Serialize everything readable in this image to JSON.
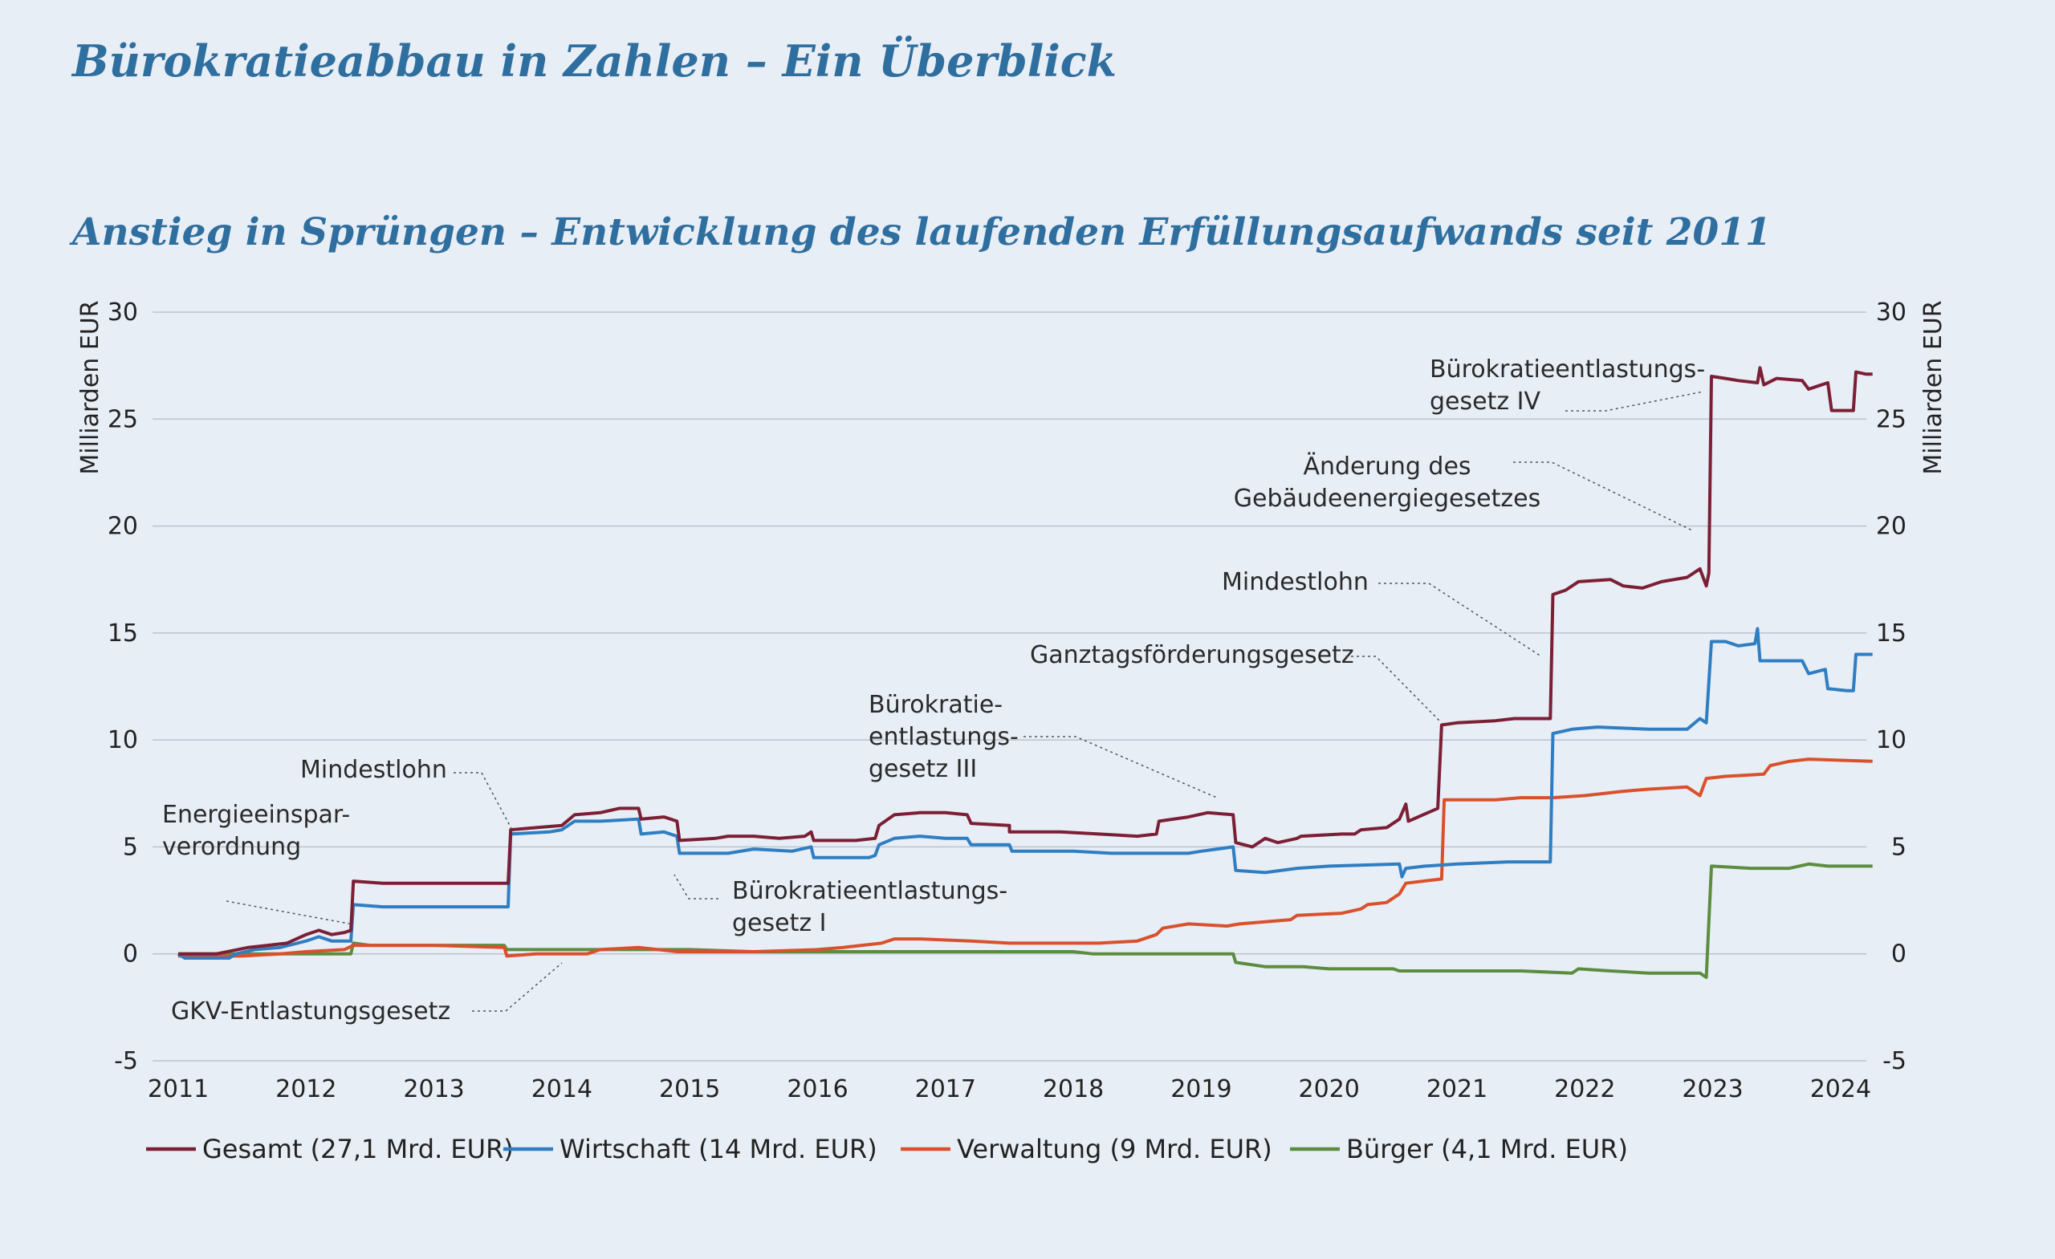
{
  "page": {
    "title": "Bürokratieabbau in Zahlen – Ein Überblick"
  },
  "chart_data": {
    "type": "line",
    "title": "Anstieg in Sprüngen – Entwicklung des laufenden Erfüllungsaufwands seit 2011",
    "ylabel": "Milliarden EUR",
    "ylabel_right": "Milliarden EUR",
    "ylim": [
      -5,
      30
    ],
    "yticks": [
      30,
      25,
      20,
      15,
      10,
      5,
      0,
      -5
    ],
    "xlim": [
      2011,
      2024.3
    ],
    "xticks": [
      "2011",
      "2012",
      "2013",
      "2014",
      "2015",
      "2016",
      "2017",
      "2018",
      "2019",
      "2020",
      "2021",
      "2022",
      "2023",
      "2024"
    ],
    "grid": true,
    "legend_position": "bottom",
    "series": [
      {
        "name": "Gesamt (27,1 Mrd. EUR)",
        "color": "#7b1f35",
        "points": [
          [
            2011.0,
            0.0
          ],
          [
            2011.3,
            0.0
          ],
          [
            2011.55,
            0.3
          ],
          [
            2011.7,
            0.4
          ],
          [
            2011.85,
            0.5
          ],
          [
            2012.0,
            0.9
          ],
          [
            2012.1,
            1.1
          ],
          [
            2012.2,
            0.9
          ],
          [
            2012.3,
            1.0
          ],
          [
            2012.35,
            1.1
          ],
          [
            2012.37,
            3.4
          ],
          [
            2012.6,
            3.3
          ],
          [
            2013.0,
            3.3
          ],
          [
            2013.58,
            3.3
          ],
          [
            2013.6,
            5.8
          ],
          [
            2013.8,
            5.9
          ],
          [
            2014.0,
            6.0
          ],
          [
            2014.1,
            6.5
          ],
          [
            2014.3,
            6.6
          ],
          [
            2014.45,
            6.8
          ],
          [
            2014.6,
            6.8
          ],
          [
            2014.62,
            6.3
          ],
          [
            2014.8,
            6.4
          ],
          [
            2014.9,
            6.2
          ],
          [
            2014.92,
            5.3
          ],
          [
            2015.2,
            5.4
          ],
          [
            2015.3,
            5.5
          ],
          [
            2015.5,
            5.5
          ],
          [
            2015.7,
            5.4
          ],
          [
            2015.9,
            5.5
          ],
          [
            2015.95,
            5.7
          ],
          [
            2015.97,
            5.3
          ],
          [
            2016.3,
            5.3
          ],
          [
            2016.45,
            5.4
          ],
          [
            2016.48,
            6.0
          ],
          [
            2016.6,
            6.5
          ],
          [
            2016.8,
            6.6
          ],
          [
            2017.0,
            6.6
          ],
          [
            2017.17,
            6.5
          ],
          [
            2017.2,
            6.1
          ],
          [
            2017.5,
            6.0
          ],
          [
            2017.5,
            5.7
          ],
          [
            2017.9,
            5.7
          ],
          [
            2018.2,
            5.6
          ],
          [
            2018.5,
            5.5
          ],
          [
            2018.65,
            5.6
          ],
          [
            2018.67,
            6.2
          ],
          [
            2018.9,
            6.4
          ],
          [
            2019.05,
            6.6
          ],
          [
            2019.25,
            6.5
          ],
          [
            2019.27,
            5.2
          ],
          [
            2019.4,
            5.0
          ],
          [
            2019.5,
            5.4
          ],
          [
            2019.6,
            5.2
          ],
          [
            2019.75,
            5.4
          ],
          [
            2019.78,
            5.5
          ],
          [
            2020.1,
            5.6
          ],
          [
            2020.2,
            5.6
          ],
          [
            2020.25,
            5.8
          ],
          [
            2020.45,
            5.9
          ],
          [
            2020.55,
            6.3
          ],
          [
            2020.6,
            7.0
          ],
          [
            2020.62,
            6.2
          ],
          [
            2020.85,
            6.8
          ],
          [
            2020.88,
            10.7
          ],
          [
            2021.0,
            10.8
          ],
          [
            2021.3,
            10.9
          ],
          [
            2021.45,
            11.0
          ],
          [
            2021.73,
            11.0
          ],
          [
            2021.75,
            16.8
          ],
          [
            2021.85,
            17.0
          ],
          [
            2021.95,
            17.4
          ],
          [
            2022.2,
            17.5
          ],
          [
            2022.3,
            17.2
          ],
          [
            2022.45,
            17.1
          ],
          [
            2022.6,
            17.4
          ],
          [
            2022.8,
            17.6
          ],
          [
            2022.9,
            18.0
          ],
          [
            2022.95,
            17.2
          ],
          [
            2022.97,
            17.8
          ],
          [
            2022.99,
            27.0
          ],
          [
            2023.1,
            26.9
          ],
          [
            2023.2,
            26.8
          ],
          [
            2023.35,
            26.7
          ],
          [
            2023.37,
            27.4
          ],
          [
            2023.4,
            26.6
          ],
          [
            2023.5,
            26.9
          ],
          [
            2023.7,
            26.8
          ],
          [
            2023.75,
            26.4
          ],
          [
            2023.8,
            26.5
          ],
          [
            2023.9,
            26.7
          ],
          [
            2023.93,
            25.4
          ],
          [
            2024.05,
            25.4
          ],
          [
            2024.1,
            25.4
          ],
          [
            2024.12,
            27.2
          ],
          [
            2024.2,
            27.1
          ],
          [
            2024.25,
            27.1
          ]
        ]
      },
      {
        "name": "Wirtschaft (14 Mrd. EUR)",
        "color": "#2f7ec1",
        "points": [
          [
            2011.0,
            0.0
          ],
          [
            2011.05,
            -0.2
          ],
          [
            2011.4,
            -0.2
          ],
          [
            2011.45,
            0.0
          ],
          [
            2011.6,
            0.2
          ],
          [
            2011.8,
            0.3
          ],
          [
            2012.0,
            0.6
          ],
          [
            2012.1,
            0.8
          ],
          [
            2012.2,
            0.6
          ],
          [
            2012.35,
            0.6
          ],
          [
            2012.37,
            2.3
          ],
          [
            2012.6,
            2.2
          ],
          [
            2013.0,
            2.2
          ],
          [
            2013.58,
            2.2
          ],
          [
            2013.6,
            5.6
          ],
          [
            2013.9,
            5.7
          ],
          [
            2014.0,
            5.8
          ],
          [
            2014.1,
            6.2
          ],
          [
            2014.3,
            6.2
          ],
          [
            2014.6,
            6.3
          ],
          [
            2014.62,
            5.6
          ],
          [
            2014.8,
            5.7
          ],
          [
            2014.9,
            5.5
          ],
          [
            2014.92,
            4.7
          ],
          [
            2015.3,
            4.7
          ],
          [
            2015.5,
            4.9
          ],
          [
            2015.8,
            4.8
          ],
          [
            2015.95,
            5.0
          ],
          [
            2015.97,
            4.5
          ],
          [
            2016.4,
            4.5
          ],
          [
            2016.45,
            4.6
          ],
          [
            2016.48,
            5.1
          ],
          [
            2016.6,
            5.4
          ],
          [
            2016.8,
            5.5
          ],
          [
            2017.0,
            5.4
          ],
          [
            2017.17,
            5.4
          ],
          [
            2017.2,
            5.1
          ],
          [
            2017.5,
            5.1
          ],
          [
            2017.52,
            4.8
          ],
          [
            2018.0,
            4.8
          ],
          [
            2018.3,
            4.7
          ],
          [
            2018.7,
            4.7
          ],
          [
            2018.9,
            4.7
          ],
          [
            2019.0,
            4.8
          ],
          [
            2019.25,
            5.0
          ],
          [
            2019.27,
            3.9
          ],
          [
            2019.5,
            3.8
          ],
          [
            2019.75,
            4.0
          ],
          [
            2020.0,
            4.1
          ],
          [
            2020.55,
            4.2
          ],
          [
            2020.57,
            3.6
          ],
          [
            2020.6,
            4.0
          ],
          [
            2020.75,
            4.1
          ],
          [
            2021.0,
            4.2
          ],
          [
            2021.4,
            4.3
          ],
          [
            2021.73,
            4.3
          ],
          [
            2021.75,
            10.3
          ],
          [
            2021.9,
            10.5
          ],
          [
            2022.1,
            10.6
          ],
          [
            2022.5,
            10.5
          ],
          [
            2022.8,
            10.5
          ],
          [
            2022.9,
            11.0
          ],
          [
            2022.95,
            10.8
          ],
          [
            2022.99,
            14.6
          ],
          [
            2023.1,
            14.6
          ],
          [
            2023.2,
            14.4
          ],
          [
            2023.33,
            14.5
          ],
          [
            2023.35,
            15.2
          ],
          [
            2023.37,
            13.7
          ],
          [
            2023.7,
            13.7
          ],
          [
            2023.75,
            13.1
          ],
          [
            2023.88,
            13.3
          ],
          [
            2023.9,
            12.4
          ],
          [
            2024.05,
            12.3
          ],
          [
            2024.1,
            12.3
          ],
          [
            2024.12,
            14.0
          ],
          [
            2024.25,
            14.0
          ]
        ]
      },
      {
        "name": "Verwaltung (9 Mrd. EUR)",
        "color": "#d9512c",
        "points": [
          [
            2011.0,
            -0.1
          ],
          [
            2011.5,
            -0.1
          ],
          [
            2011.8,
            0.0
          ],
          [
            2012.0,
            0.1
          ],
          [
            2012.3,
            0.2
          ],
          [
            2012.37,
            0.4
          ],
          [
            2012.8,
            0.4
          ],
          [
            2013.0,
            0.4
          ],
          [
            2013.55,
            0.3
          ],
          [
            2013.57,
            -0.1
          ],
          [
            2013.8,
            0.0
          ],
          [
            2014.0,
            0.0
          ],
          [
            2014.2,
            0.0
          ],
          [
            2014.3,
            0.2
          ],
          [
            2014.6,
            0.3
          ],
          [
            2014.9,
            0.1
          ],
          [
            2015.5,
            0.1
          ],
          [
            2016.0,
            0.2
          ],
          [
            2016.2,
            0.3
          ],
          [
            2016.5,
            0.5
          ],
          [
            2016.6,
            0.7
          ],
          [
            2016.8,
            0.7
          ],
          [
            2017.2,
            0.6
          ],
          [
            2017.5,
            0.5
          ],
          [
            2018.0,
            0.5
          ],
          [
            2018.2,
            0.5
          ],
          [
            2018.5,
            0.6
          ],
          [
            2018.65,
            0.9
          ],
          [
            2018.7,
            1.2
          ],
          [
            2018.9,
            1.4
          ],
          [
            2019.2,
            1.3
          ],
          [
            2019.3,
            1.4
          ],
          [
            2019.5,
            1.5
          ],
          [
            2019.7,
            1.6
          ],
          [
            2019.75,
            1.8
          ],
          [
            2020.1,
            1.9
          ],
          [
            2020.25,
            2.1
          ],
          [
            2020.3,
            2.3
          ],
          [
            2020.45,
            2.4
          ],
          [
            2020.55,
            2.8
          ],
          [
            2020.6,
            3.3
          ],
          [
            2020.88,
            3.5
          ],
          [
            2020.9,
            7.2
          ],
          [
            2021.3,
            7.2
          ],
          [
            2021.5,
            7.3
          ],
          [
            2021.75,
            7.3
          ],
          [
            2022.0,
            7.4
          ],
          [
            2022.3,
            7.6
          ],
          [
            2022.5,
            7.7
          ],
          [
            2022.8,
            7.8
          ],
          [
            2022.9,
            7.4
          ],
          [
            2022.95,
            8.2
          ],
          [
            2023.1,
            8.3
          ],
          [
            2023.4,
            8.4
          ],
          [
            2023.45,
            8.8
          ],
          [
            2023.6,
            9.0
          ],
          [
            2023.75,
            9.1
          ],
          [
            2024.25,
            9.0
          ]
        ]
      },
      {
        "name": "Bürger (4,1 Mrd. EUR)",
        "color": "#5c8d3f",
        "points": [
          [
            2011.0,
            0.0
          ],
          [
            2012.0,
            0.0
          ],
          [
            2012.35,
            0.0
          ],
          [
            2012.37,
            0.5
          ],
          [
            2012.5,
            0.4
          ],
          [
            2013.0,
            0.4
          ],
          [
            2013.55,
            0.4
          ],
          [
            2013.57,
            0.2
          ],
          [
            2014.0,
            0.2
          ],
          [
            2014.5,
            0.2
          ],
          [
            2015.0,
            0.2
          ],
          [
            2015.5,
            0.1
          ],
          [
            2016.0,
            0.1
          ],
          [
            2016.5,
            0.1
          ],
          [
            2017.0,
            0.1
          ],
          [
            2018.0,
            0.1
          ],
          [
            2018.15,
            0.0
          ],
          [
            2018.5,
            0.0
          ],
          [
            2019.0,
            0.0
          ],
          [
            2019.25,
            0.0
          ],
          [
            2019.27,
            -0.4
          ],
          [
            2019.5,
            -0.6
          ],
          [
            2019.8,
            -0.6
          ],
          [
            2020.0,
            -0.7
          ],
          [
            2020.5,
            -0.7
          ],
          [
            2020.55,
            -0.8
          ],
          [
            2021.0,
            -0.8
          ],
          [
            2021.5,
            -0.8
          ],
          [
            2021.9,
            -0.9
          ],
          [
            2021.95,
            -0.7
          ],
          [
            2022.2,
            -0.8
          ],
          [
            2022.5,
            -0.9
          ],
          [
            2022.9,
            -0.9
          ],
          [
            2022.95,
            -1.1
          ],
          [
            2022.99,
            4.1
          ],
          [
            2023.3,
            4.0
          ],
          [
            2023.6,
            4.0
          ],
          [
            2023.75,
            4.2
          ],
          [
            2023.9,
            4.1
          ],
          [
            2024.25,
            4.1
          ]
        ]
      }
    ],
    "annotations": [
      {
        "lines": [
          "Energieeinspar-",
          "verordnung"
        ],
        "x": 2012.35,
        "y": 1.2
      },
      {
        "lines": [
          "Mindestlohn"
        ],
        "x": 2013.6,
        "y": 5.8
      },
      {
        "lines": [
          "GKV-Entlastungsgesetz"
        ],
        "x": 2014.0,
        "y": -0.3
      },
      {
        "lines": [
          "Bürokratieentlastungs-",
          "gesetz I"
        ],
        "x": 2014.9,
        "y": 5.3
      },
      {
        "lines": [
          "Bürokratie-",
          "entlastungs-",
          "gesetz III"
        ],
        "x": 2019.15,
        "y": 7.0
      },
      {
        "lines": [
          "Ganztagsförderungsgesetz"
        ],
        "x": 2020.9,
        "y": 10.8
      },
      {
        "lines": [
          "Mindestlohn"
        ],
        "x": 2021.73,
        "y": 14.0
      },
      {
        "lines": [
          "Änderung des",
          "Gebäudeenergiegesetzes"
        ],
        "x": 2022.9,
        "y": 19.7
      },
      {
        "lines": [
          "Bürokratieentlastungs-",
          "gesetz IV"
        ],
        "x": 2023.9,
        "y": 26.2
      }
    ]
  }
}
